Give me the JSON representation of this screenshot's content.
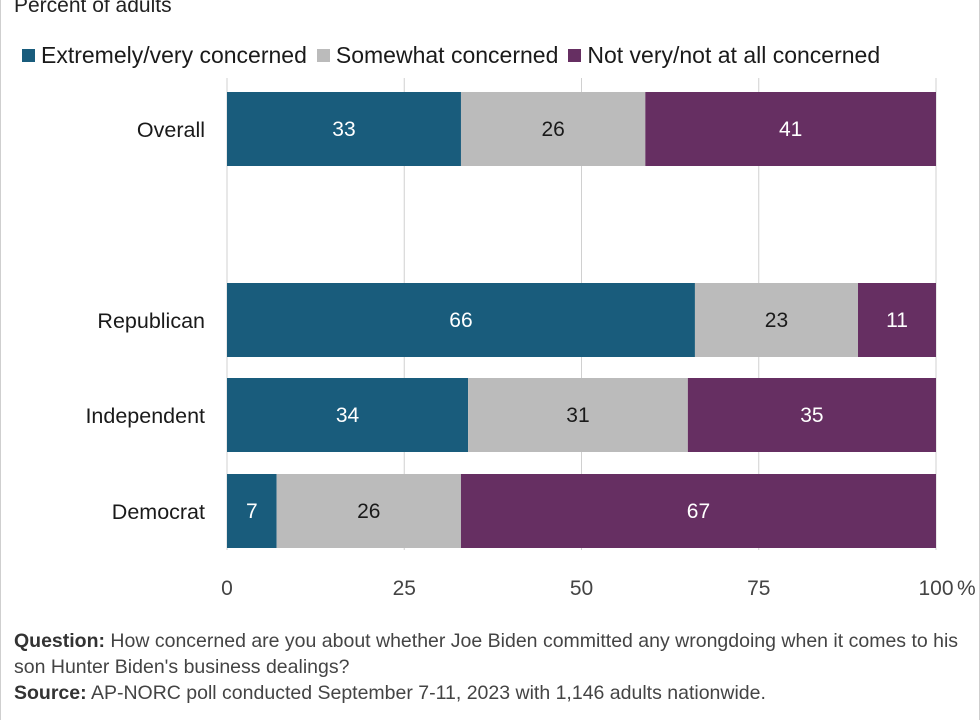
{
  "subtitle": "Percent of adults",
  "colors": {
    "extremely": "#195c7c",
    "somewhat": "#bbbbbb",
    "not": "#662f62",
    "grid": "#d0d0d0"
  },
  "legend": [
    {
      "label": "Extremely/very concerned",
      "color": "#195c7c"
    },
    {
      "label": "Somewhat concerned",
      "color": "#bbbbbb"
    },
    {
      "label": "Not very/not at all concerned",
      "color": "#662f62"
    }
  ],
  "chart_data": {
    "type": "bar",
    "orientation": "horizontal",
    "stacked": true,
    "categories": [
      "Overall",
      "Republican",
      "Independent",
      "Democrat"
    ],
    "series": [
      {
        "name": "Extremely/very concerned",
        "values": [
          33,
          66,
          34,
          7
        ]
      },
      {
        "name": "Somewhat concerned",
        "values": [
          26,
          23,
          31,
          26
        ]
      },
      {
        "name": "Not very/not at all concerned",
        "values": [
          41,
          11,
          35,
          67
        ]
      }
    ],
    "xlim": [
      0,
      100
    ],
    "xticks": [
      "0",
      "25",
      "50",
      "75",
      "100"
    ],
    "x_unit": "%",
    "grid": true,
    "legend_position": "top"
  },
  "footer": {
    "question_label": "Question:",
    "question_text": " How concerned are you about whether Joe Biden committed any wrongdoing when it comes to his son Hunter Biden's business dealings?",
    "source_label": "Source:",
    "source_text": " AP-NORC poll conducted September 7-11, 2023 with 1,146 adults nationwide."
  }
}
